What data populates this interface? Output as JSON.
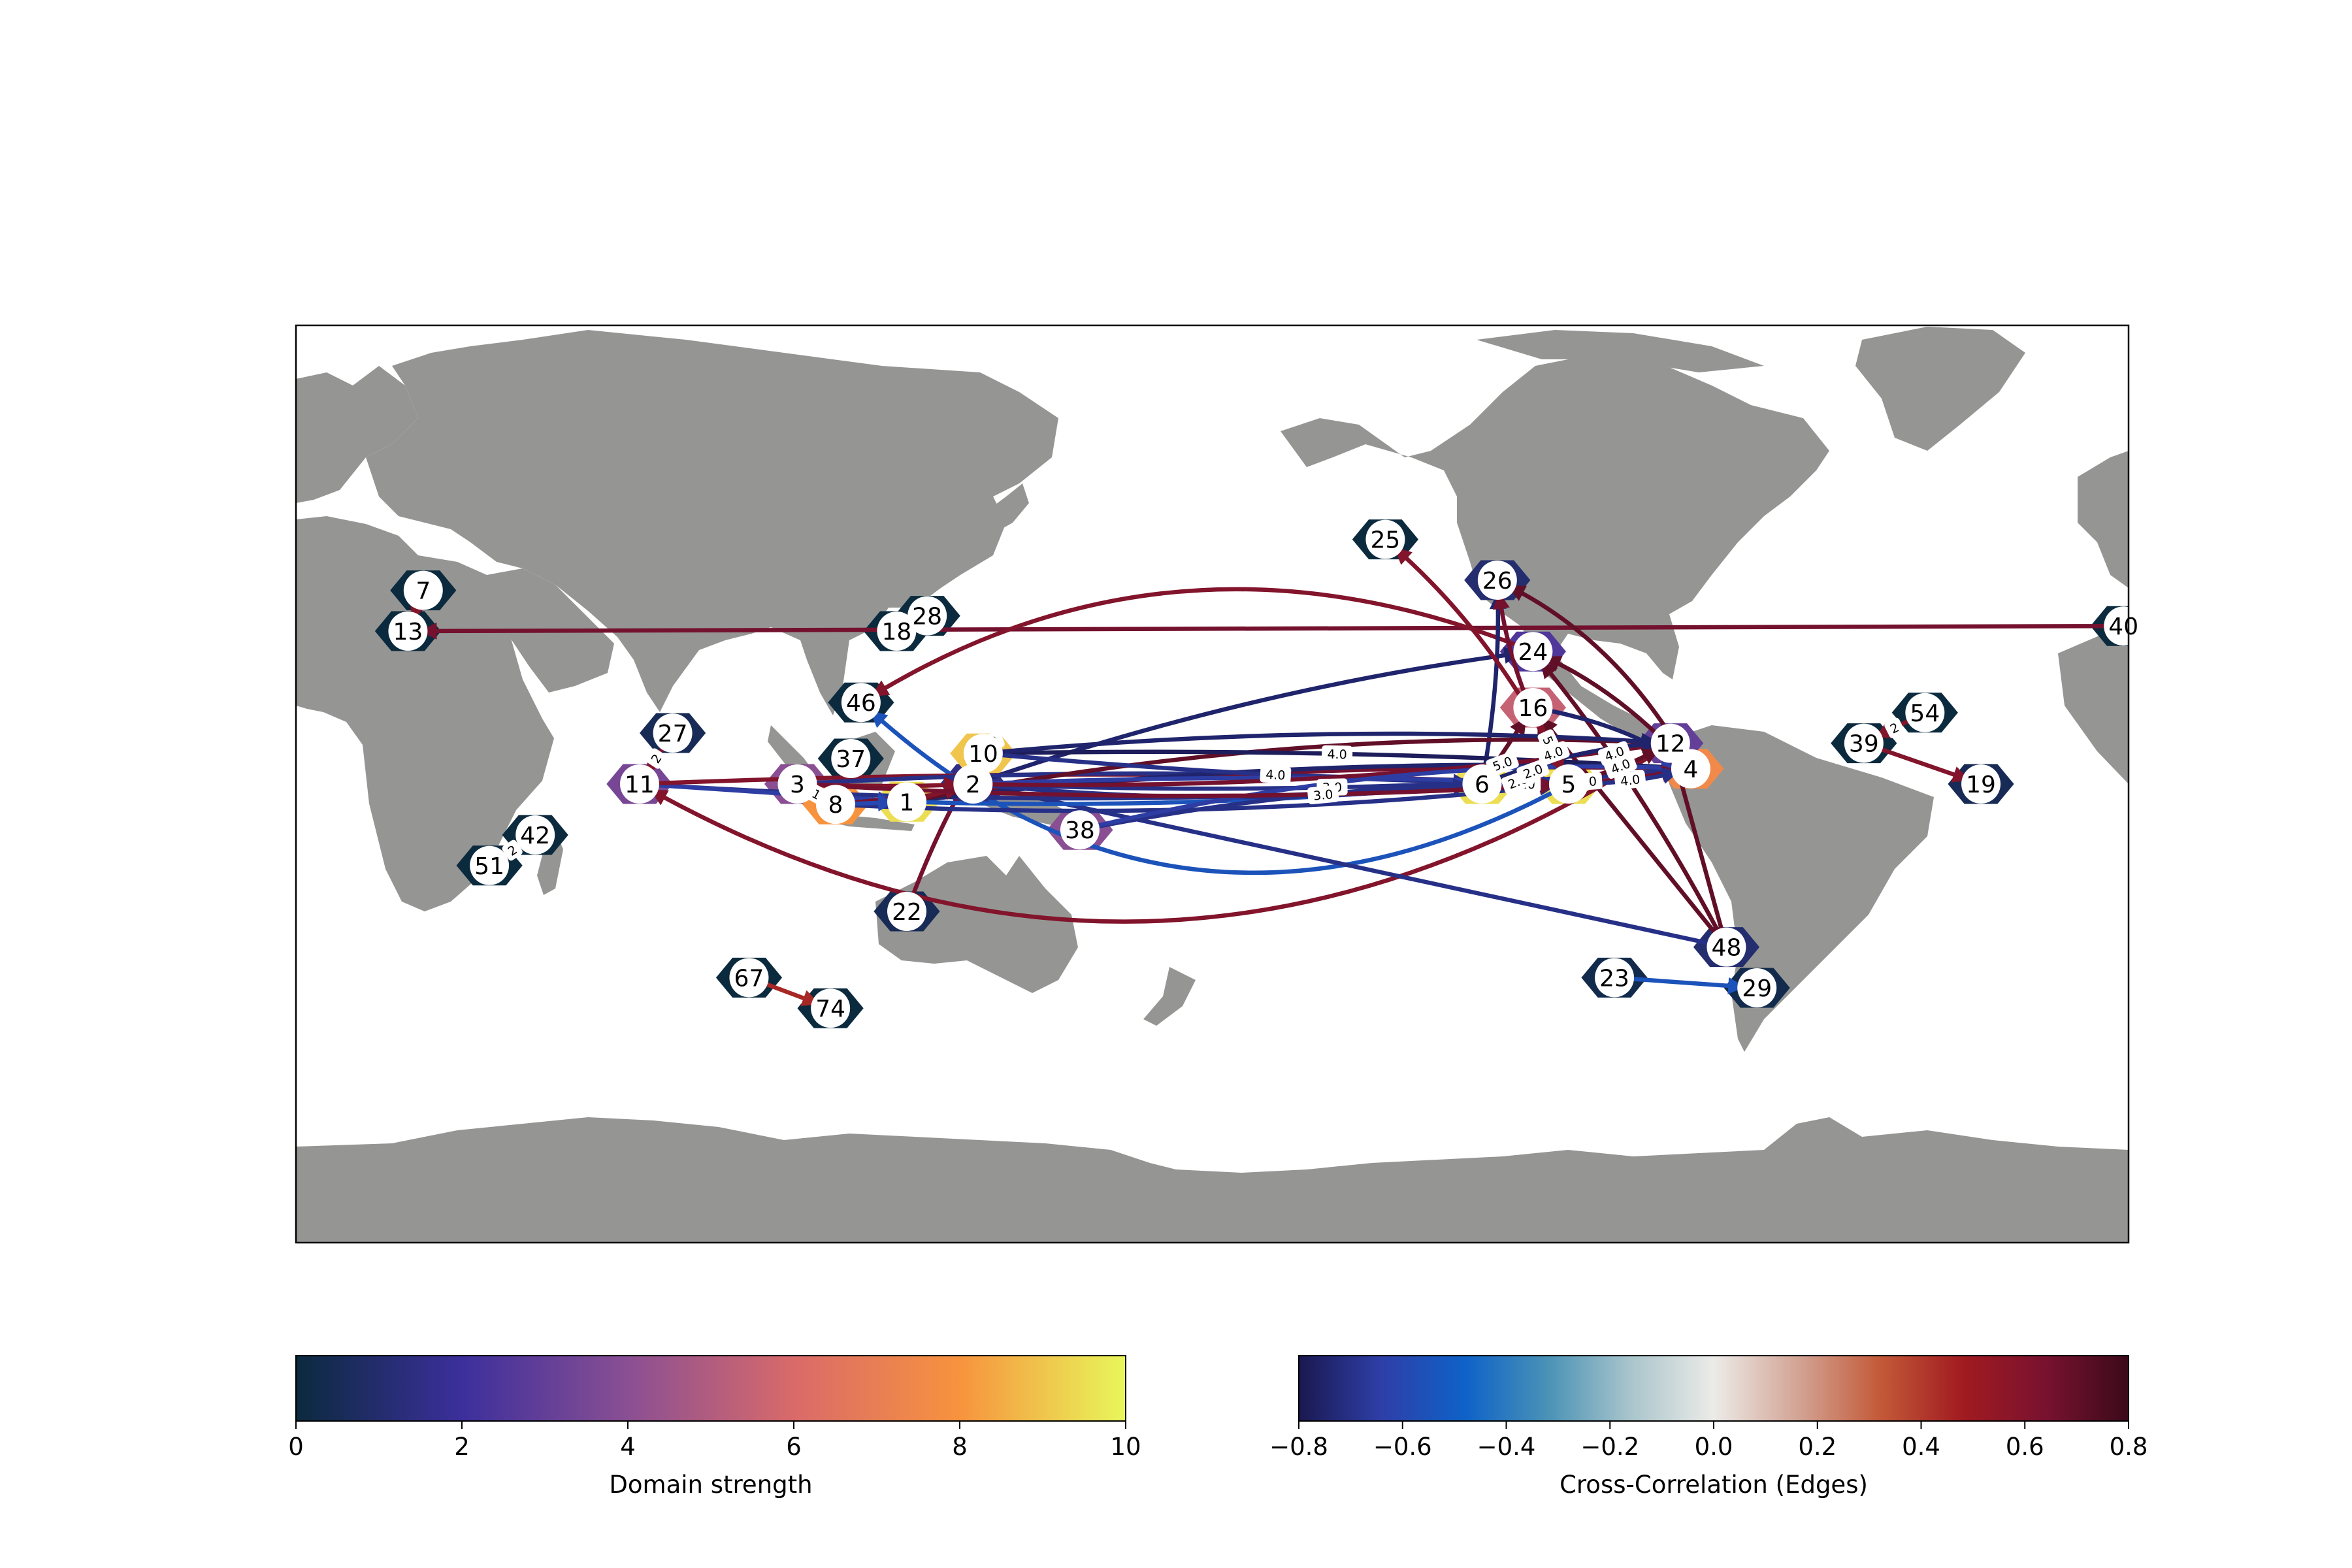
{
  "figure": {
    "colorbars": [
      {
        "label": "Domain strength",
        "ticks": [
          "0",
          "2",
          "4",
          "6",
          "8",
          "10"
        ],
        "stops": [
          "#0b2a3e",
          "#3c2f9c",
          "#8a4f93",
          "#d96a6a",
          "#f7933e",
          "#e8f75a"
        ]
      },
      {
        "label": "Cross-Correlation (Edges)",
        "ticks": [
          "−0.8",
          "−0.6",
          "−0.4",
          "−0.2",
          "0.0",
          "0.2",
          "0.4",
          "0.6",
          "0.8"
        ],
        "stops": [
          "#1a1850",
          "#2e3fa8",
          "#0e62c8",
          "#4a92b6",
          "#a9c5cc",
          "#ecebe8",
          "#d3a596",
          "#c35a39",
          "#a11b20",
          "#78122f",
          "#3b0a1a"
        ]
      }
    ],
    "colors": {
      "land": "#959694",
      "ocean": "#ffffff",
      "frame": "#000000"
    }
  },
  "nodes": [
    {
      "id": "1",
      "lon": 120,
      "lat": -3.5,
      "strength": 9.5
    },
    {
      "id": "2",
      "lon": 133,
      "lat": 0,
      "strength": 1.5
    },
    {
      "id": "3",
      "lon": 98.5,
      "lat": 0,
      "strength": 4
    },
    {
      "id": "4",
      "lon": -86,
      "lat": 3,
      "strength": 7.5
    },
    {
      "id": "5",
      "lon": -110,
      "lat": 0,
      "strength": 9.5
    },
    {
      "id": "6",
      "lon": -127,
      "lat": 0,
      "strength": 9.5
    },
    {
      "id": "7",
      "lon": 25,
      "lat": 38,
      "strength": 0
    },
    {
      "id": "8",
      "lon": 106,
      "lat": -4,
      "strength": 8
    },
    {
      "id": "10",
      "lon": 135,
      "lat": 6,
      "strength": 9
    },
    {
      "id": "11",
      "lon": 67.5,
      "lat": 0,
      "strength": 3.5
    },
    {
      "id": "12",
      "lon": -90,
      "lat": 8,
      "strength": 3
    },
    {
      "id": "13",
      "lon": 22,
      "lat": 30,
      "strength": 0
    },
    {
      "id": "16",
      "lon": -117,
      "lat": 15,
      "strength": 5.5
    },
    {
      "id": "18",
      "lon": 118,
      "lat": 30,
      "strength": 0
    },
    {
      "id": "19",
      "lon": -29,
      "lat": 0,
      "strength": 0.5
    },
    {
      "id": "22",
      "lon": 120,
      "lat": -25,
      "strength": 0.5
    },
    {
      "id": "23",
      "lon": -101,
      "lat": -38,
      "strength": 0.3
    },
    {
      "id": "24",
      "lon": -117,
      "lat": 26,
      "strength": 2.5
    },
    {
      "id": "25",
      "lon": -146,
      "lat": 48,
      "strength": 0
    },
    {
      "id": "26",
      "lon": -124,
      "lat": 40,
      "strength": 1
    },
    {
      "id": "27",
      "lon": 74,
      "lat": 10,
      "strength": 0.5
    },
    {
      "id": "28",
      "lon": 124,
      "lat": 33,
      "strength": 0
    },
    {
      "id": "29",
      "lon": -73,
      "lat": -40,
      "strength": 0.3
    },
    {
      "id": "37",
      "lon": 109,
      "lat": 5,
      "strength": 0
    },
    {
      "id": "38",
      "lon": 154,
      "lat": -9,
      "strength": 4
    },
    {
      "id": "39",
      "lon": -52,
      "lat": 8,
      "strength": 0
    },
    {
      "id": "40",
      "lon": -1,
      "lat": 31,
      "strength": 0
    },
    {
      "id": "42",
      "lon": 47,
      "lat": -10,
      "strength": 0
    },
    {
      "id": "46",
      "lon": 111,
      "lat": 16,
      "strength": 0
    },
    {
      "id": "48",
      "lon": -79,
      "lat": -32,
      "strength": 1
    },
    {
      "id": "51",
      "lon": 38,
      "lat": -16,
      "strength": 0
    },
    {
      "id": "54",
      "lon": -40,
      "lat": 14,
      "strength": 0
    },
    {
      "id": "67",
      "lon": 89,
      "lat": -38,
      "strength": 0
    },
    {
      "id": "74",
      "lon": 105,
      "lat": -44,
      "strength": 0
    }
  ],
  "edges": [
    {
      "from": "40",
      "to": "13",
      "corr": 0.65
    },
    {
      "from": "7",
      "to": "13",
      "corr": 0.6
    },
    {
      "from": "18",
      "to": "28",
      "corr": 0.5
    },
    {
      "from": "27",
      "to": "11",
      "corr": 0.6,
      "label": "2"
    },
    {
      "from": "42",
      "to": "51",
      "corr": 0.6,
      "label": "2"
    },
    {
      "from": "67",
      "to": "74",
      "corr": 0.45
    },
    {
      "from": "54",
      "to": "39",
      "corr": 0.6,
      "label": "2"
    },
    {
      "from": "39",
      "to": "19",
      "corr": 0.6
    },
    {
      "from": "23",
      "to": "29",
      "corr": -0.55
    },
    {
      "from": "5",
      "to": "46",
      "corr": -0.55,
      "curve": -0.35
    },
    {
      "from": "12",
      "to": "11",
      "corr": 0.6,
      "curve": -0.3
    },
    {
      "from": "24",
      "to": "46",
      "corr": 0.6,
      "curve": 0.25
    },
    {
      "from": "3",
      "to": "8",
      "corr": 0.6,
      "label": "1"
    },
    {
      "from": "8",
      "to": "37",
      "corr": 0.55
    },
    {
      "from": "22",
      "to": "10",
      "corr": 0.65,
      "curve": -0.05
    },
    {
      "from": "6",
      "to": "26",
      "corr": -0.75,
      "curve": 0.05
    },
    {
      "from": "2",
      "to": "24",
      "corr": -0.75,
      "curve": -0.05
    },
    {
      "from": "5",
      "to": "26",
      "corr": 0.65,
      "curve": -0.1
    },
    {
      "from": "4",
      "to": "26",
      "corr": 0.7,
      "curve": 0.15
    },
    {
      "from": "4",
      "to": "24",
      "corr": 0.7,
      "curve": 0.1
    },
    {
      "from": "48",
      "to": "24",
      "corr": 0.7,
      "curve": 0.05
    },
    {
      "from": "48",
      "to": "12",
      "corr": 0.7
    },
    {
      "from": "48",
      "to": "16",
      "corr": 0.7
    },
    {
      "from": "5",
      "to": "16",
      "corr": 0.7
    },
    {
      "from": "6",
      "to": "16",
      "corr": 0.7
    },
    {
      "from": "48",
      "to": "2",
      "corr": -0.7
    },
    {
      "from": "5",
      "to": "25",
      "corr": 0.6,
      "curve": 0.1
    },
    {
      "from": "11",
      "to": "4",
      "corr": -0.7,
      "curve": 0.04
    },
    {
      "from": "11",
      "to": "1",
      "corr": -0.65
    },
    {
      "from": "11",
      "to": "5",
      "corr": 0.6,
      "curve": -0.02
    },
    {
      "from": "3",
      "to": "6",
      "corr": -0.7,
      "curve": -0.03
    },
    {
      "from": "8",
      "to": "5",
      "corr": -0.7,
      "curve": 0.04
    },
    {
      "from": "8",
      "to": "4",
      "corr": 0.65,
      "curve": -0.03
    },
    {
      "from": "1",
      "to": "4",
      "corr": -0.75,
      "curve": -0.04
    },
    {
      "from": "1",
      "to": "6",
      "corr": -0.55,
      "curve": 0.03
    },
    {
      "from": "1",
      "to": "12",
      "corr": 0.7,
      "curve": -0.06
    },
    {
      "from": "10",
      "to": "4",
      "corr": -0.78,
      "curve": -0.02,
      "label": "4.0"
    },
    {
      "from": "10",
      "to": "5",
      "corr": -0.7,
      "curve": 0.02,
      "label": "4.0"
    },
    {
      "from": "10",
      "to": "12",
      "corr": -0.75,
      "curve": -0.04
    },
    {
      "from": "2",
      "to": "4",
      "corr": -0.7,
      "curve": 0.03,
      "label": "3.0"
    },
    {
      "from": "2",
      "to": "5",
      "corr": -0.65,
      "curve": -0.02
    },
    {
      "from": "2",
      "to": "6",
      "corr": -0.7,
      "curve": 0.05
    },
    {
      "from": "2",
      "to": "12",
      "corr": 0.65,
      "curve": 0.04
    },
    {
      "from": "38",
      "to": "5",
      "corr": -0.7,
      "curve": -0.05,
      "label": "3.0"
    },
    {
      "from": "38",
      "to": "4",
      "corr": -0.65,
      "curve": -0.07
    },
    {
      "from": "6",
      "to": "4",
      "corr": 0.65,
      "curve": 0.05,
      "label": "2.0"
    },
    {
      "from": "6",
      "to": "12",
      "corr": -0.75,
      "curve": -0.08
    },
    {
      "from": "5",
      "to": "4",
      "corr": -0.7,
      "curve": 0.06,
      "label": "4.0"
    },
    {
      "from": "5",
      "to": "12",
      "corr": 0.7,
      "curve": 0.05,
      "label": "4.0"
    },
    {
      "from": "16",
      "to": "5",
      "corr": 0.6,
      "label": "5.0"
    },
    {
      "from": "16",
      "to": "4",
      "corr": -0.75,
      "curve": -0.1
    },
    {
      "from": "6",
      "to": "5",
      "corr": -0.7,
      "label": "5.0"
    },
    {
      "from": "12",
      "to": "4",
      "corr": -0.7,
      "label": "2.0"
    },
    {
      "from": "3",
      "to": "2",
      "corr": 0.6,
      "curve": 0.02
    },
    {
      "from": "8",
      "to": "1",
      "corr": -0.6
    },
    {
      "from": "1",
      "to": "2",
      "corr": 0.6
    },
    {
      "from": "3",
      "to": "5",
      "corr": 0.65,
      "curve": 0.03
    }
  ],
  "extra_edge_labels": [
    {
      "lon": 136,
      "lat": 8,
      "text": "4.0"
    },
    {
      "lon": -120,
      "lat": 0.5,
      "text": "2.0"
    },
    {
      "lon": -113,
      "lat": 6,
      "text": "4.0"
    },
    {
      "lon": -117,
      "lat": 2.5,
      "text": "2.0"
    },
    {
      "lon": -123,
      "lat": 4,
      "text": "5.0"
    },
    {
      "lon": -101,
      "lat": 6,
      "text": "4.0"
    }
  ]
}
